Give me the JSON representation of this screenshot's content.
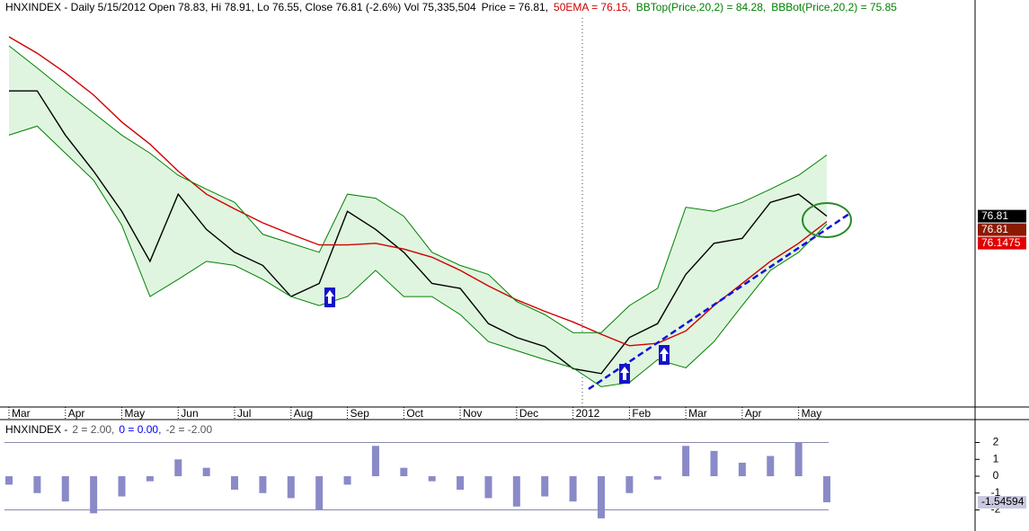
{
  "chart_data": [
    {
      "type": "line",
      "title": "HNXINDEX - Daily 5/15/2012 Open 78.83, Hi 78.91, Lo 76.55, Close 76.81 (-2.6%) Vol 75,335,504",
      "categories": [
        "Mar",
        null,
        "Apr",
        null,
        "May",
        null,
        "Jun",
        null,
        "Jul",
        null,
        "Aug",
        null,
        "Sep",
        null,
        "Oct",
        null,
        "Nov",
        null,
        "Dec",
        null,
        "2012",
        null,
        "Feb",
        null,
        "Mar",
        null,
        "Apr",
        null,
        "May",
        null
      ],
      "ylim": [
        53.3,
        101
      ],
      "series": [
        {
          "name": "Price = 76.81,",
          "color": "#000000",
          "values": [
            92.1,
            92.1,
            86.7,
            82.3,
            77.4,
            71.3,
            79.5,
            75.2,
            72.4,
            70.8,
            67.0,
            68.6,
            77.4,
            75.2,
            72.4,
            68.6,
            68.0,
            63.7,
            62.0,
            60.9,
            58.2,
            57.6,
            62.0,
            63.7,
            69.7,
            73.5,
            74.1,
            78.5,
            79.5,
            76.81
          ]
        },
        {
          "name": "50EMA = 76.15,",
          "color": "#d00000",
          "values": [
            98.7,
            96.7,
            94.3,
            91.6,
            88.3,
            85.6,
            82.3,
            79.5,
            77.7,
            76.0,
            74.6,
            73.3,
            73.3,
            73.5,
            72.8,
            71.8,
            70.2,
            68.3,
            66.6,
            65.2,
            63.9,
            62.4,
            61.0,
            61.3,
            62.8,
            65.9,
            68.6,
            71.3,
            73.5,
            76.15
          ]
        },
        {
          "name": "BBTop(Price,20,2) = 84.28,",
          "color": "#008000",
          "values": [
            97.6,
            94.9,
            92.1,
            89.4,
            86.7,
            84.5,
            81.8,
            80.1,
            78.5,
            74.6,
            73.5,
            72.4,
            79.5,
            79.0,
            76.8,
            72.4,
            70.8,
            69.7,
            66.4,
            64.8,
            62.6,
            62.6,
            65.9,
            68.0,
            77.9,
            77.4,
            78.5,
            80.1,
            81.8,
            84.28
          ]
        },
        {
          "name": "BBBot(Price,20,2) = 75.85",
          "color": "#008000",
          "values": [
            86.7,
            87.8,
            84.5,
            81.2,
            75.7,
            67.0,
            69.1,
            71.3,
            70.8,
            69.1,
            67.0,
            65.9,
            67.0,
            70.2,
            67.0,
            67.0,
            64.8,
            61.5,
            60.4,
            59.3,
            58.3,
            56.0,
            56.5,
            59.3,
            58.3,
            61.5,
            65.9,
            70.2,
            72.4,
            75.85
          ]
        }
      ],
      "band_color": "#dff5df",
      "last_value_labels": [
        {
          "value": 76.81,
          "label": "76.81",
          "color": "#000000"
        },
        {
          "value": 76.81,
          "label": "76.81",
          "color": "#8b1a00"
        },
        {
          "value": 76.1475,
          "label": "76.1475",
          "color": "#e00000"
        }
      ]
    },
    {
      "type": "bar",
      "title": "HNXINDEX -",
      "levels": [
        {
          "value": 2,
          "label": "2 = 2.00,",
          "color": "#555555"
        },
        {
          "value": 0,
          "label": "0 = 0.00,",
          "color": "#0000ff"
        },
        {
          "value": -2,
          "label": "-2 = -2.00",
          "color": "#555555"
        }
      ],
      "ylim": [
        -3.25,
        3.2
      ],
      "yticks": [
        2,
        1,
        0,
        -1,
        -2
      ],
      "color": "#8a8ac8",
      "values": [
        -0.5,
        -1,
        -1.5,
        -2.2,
        -1.2,
        -0.3,
        1,
        0.5,
        -0.8,
        -1,
        -1.3,
        -2,
        -0.5,
        1.8,
        0.5,
        -0.3,
        -0.8,
        -1.3,
        -1.8,
        -1.2,
        -1.5,
        -2.5,
        -1,
        -0.2,
        1.8,
        1.5,
        0.8,
        1.2,
        2,
        -1.54594
      ],
      "last_value_labels": [
        {
          "value": -1.54594,
          "label": "-1.54594",
          "color": "#c8c8e0"
        }
      ]
    }
  ]
}
